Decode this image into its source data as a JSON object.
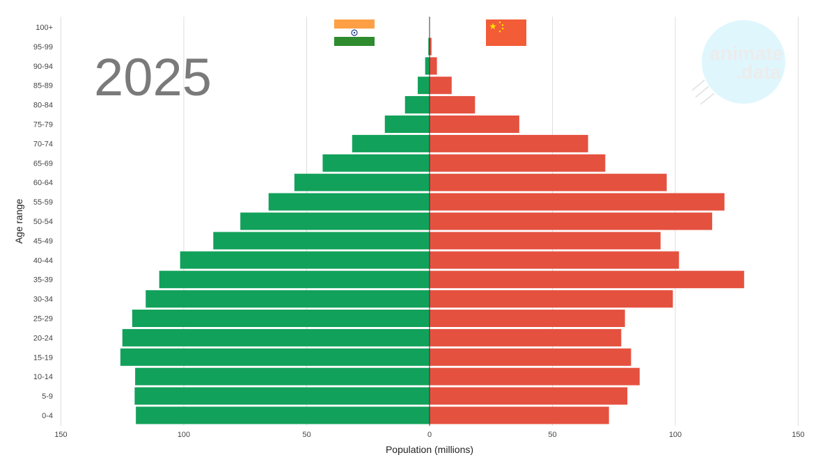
{
  "year_label": "2025",
  "watermark": {
    "line1": "animate",
    "line2": ".data",
    "circle_color": "#dff6fd"
  },
  "colors": {
    "left_series": "#12a15a",
    "right_series": "#e5513f",
    "grid": "#dddddd",
    "center_line": "#333333"
  },
  "flags": {
    "left": {
      "name": "india-flag",
      "stripes": [
        "#ff9f45",
        "#ffffff",
        "#2e8b2e"
      ],
      "emblem_color": "#1f3a8a"
    },
    "right": {
      "name": "china-flag",
      "background": "#f25c36",
      "star_color": "#ffde00"
    }
  },
  "chart_data": {
    "type": "bar",
    "orientation": "horizontal",
    "layout": "population-pyramid",
    "xlabel": "Population (millions)",
    "ylabel": "Age range",
    "xlim": [
      -150,
      150
    ],
    "x_ticks": [
      -150,
      -100,
      -50,
      0,
      50,
      100,
      150
    ],
    "x_tick_labels": [
      "150",
      "100",
      "50",
      "0",
      "50",
      "100",
      "150"
    ],
    "grid": true,
    "categories": [
      "100+",
      "95-99",
      "90-94",
      "85-89",
      "80-84",
      "75-79",
      "70-74",
      "65-69",
      "60-64",
      "55-59",
      "50-54",
      "45-49",
      "40-44",
      "35-39",
      "30-34",
      "25-29",
      "20-24",
      "15-19",
      "10-14",
      "5-9",
      "0-4"
    ],
    "series": [
      {
        "values": [
          0.1,
          0.5,
          1.8,
          4.8,
          10.0,
          18.2,
          31.5,
          43.5,
          55.0,
          65.5,
          77.0,
          88.0,
          101.5,
          110.0,
          115.5,
          121.0,
          125.0,
          125.8,
          119.8,
          120.0,
          119.5
        ]
      },
      {
        "values": [
          0.1,
          0.8,
          3.0,
          9.0,
          18.5,
          36.5,
          64.5,
          71.5,
          96.5,
          120.0,
          115.0,
          94.0,
          101.5,
          128.0,
          99.0,
          79.5,
          78.0,
          82.0,
          85.5,
          80.5,
          73.0
        ]
      }
    ]
  }
}
